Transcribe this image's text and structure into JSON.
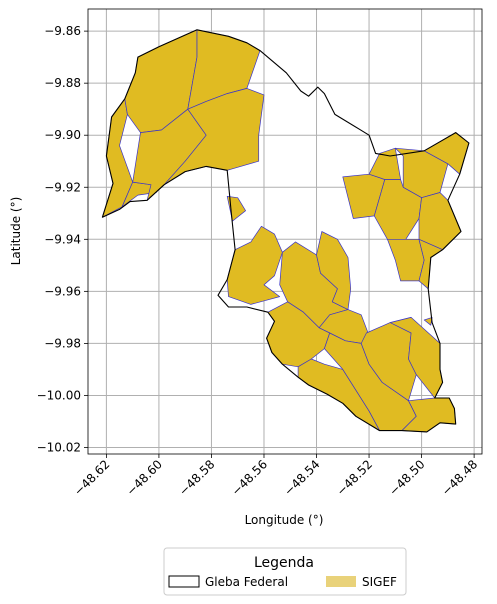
{
  "chart_data": {
    "type": "map",
    "xlabel": "Longitude (°)",
    "ylabel": "Latitude (°)",
    "xlim": [
      -48.627,
      -48.477
    ],
    "ylim": [
      -10.0225,
      -9.8515
    ],
    "xticks": [
      -48.62,
      -48.6,
      -48.58,
      -48.56,
      -48.54,
      -48.52,
      -48.5,
      -48.48
    ],
    "xtick_labels": [
      "−48.62",
      "−48.60",
      "−48.58",
      "−48.56",
      "−48.54",
      "−48.52",
      "−48.50",
      "−48.48"
    ],
    "yticks": [
      -9.86,
      -9.88,
      -9.9,
      -9.92,
      -9.94,
      -9.96,
      -9.98,
      -10.0,
      -10.02
    ],
    "ytick_labels": [
      "−9.86",
      "−9.88",
      "−9.90",
      "−9.92",
      "−9.94",
      "−9.96",
      "−9.98",
      "−10.00",
      "−10.02"
    ],
    "grid": true,
    "legend": {
      "title": "Legenda",
      "position": "bottom-center",
      "entries": [
        {
          "label": "Gleba Federal",
          "style": "outline",
          "color": "#000000"
        },
        {
          "label": "SIGEF",
          "style": "fill",
          "color": "#e9d27a"
        }
      ]
    },
    "colors": {
      "sigef_fill": "#e0bb22",
      "sigef_edge": "#3b35c9",
      "gleba_edge": "#000000",
      "grid": "#b0b0b0"
    },
    "gleba_outline": [
      [
        -48.6215,
        -9.9315
      ],
      [
        -48.6175,
        -9.9185
      ],
      [
        -48.62,
        -9.908
      ],
      [
        -48.618,
        -9.893
      ],
      [
        -48.613,
        -9.886
      ],
      [
        -48.609,
        -9.876
      ],
      [
        -48.608,
        -9.87
      ],
      [
        -48.6,
        -9.866
      ],
      [
        -48.5855,
        -9.8595
      ],
      [
        -48.5735,
        -9.862
      ],
      [
        -48.5665,
        -9.8645
      ],
      [
        -48.5615,
        -9.8675
      ],
      [
        -48.5515,
        -9.876
      ],
      [
        -48.546,
        -9.883
      ],
      [
        -48.543,
        -9.885
      ],
      [
        -48.5395,
        -9.8815
      ],
      [
        -48.537,
        -9.884
      ],
      [
        -48.533,
        -9.892
      ],
      [
        -48.524,
        -9.8975
      ],
      [
        -48.52,
        -9.9
      ],
      [
        -48.5175,
        -9.907
      ],
      [
        -48.512,
        -9.908
      ],
      [
        -48.499,
        -9.906
      ],
      [
        -48.493,
        -9.9025
      ],
      [
        -48.487,
        -9.899
      ],
      [
        -48.482,
        -9.903
      ],
      [
        -48.4855,
        -9.915
      ],
      [
        -48.49,
        -9.925
      ],
      [
        -48.485,
        -9.937
      ],
      [
        -48.492,
        -9.944
      ],
      [
        -48.4965,
        -9.947
      ],
      [
        -48.4975,
        -9.959
      ],
      [
        -48.496,
        -9.972
      ],
      [
        -48.493,
        -9.98
      ],
      [
        -48.493,
        -9.99
      ],
      [
        -48.492,
        -9.995
      ],
      [
        -48.495,
        -10.001
      ],
      [
        -48.4895,
        -10.001
      ],
      [
        -48.4875,
        -10.005
      ],
      [
        -48.487,
        -10.011
      ],
      [
        -48.493,
        -10.0105
      ],
      [
        -48.498,
        -10.014
      ],
      [
        -48.5075,
        -10.0135
      ],
      [
        -48.516,
        -10.0135
      ],
      [
        -48.525,
        -10.008
      ],
      [
        -48.53,
        -10.003
      ],
      [
        -48.536,
        -9.9995
      ],
      [
        -48.543,
        -9.996
      ],
      [
        -48.547,
        -9.993
      ],
      [
        -48.553,
        -9.988
      ],
      [
        -48.557,
        -9.9835
      ],
      [
        -48.559,
        -9.978
      ],
      [
        -48.556,
        -9.9715
      ],
      [
        -48.5585,
        -9.968
      ],
      [
        -48.5665,
        -9.966
      ],
      [
        -48.5735,
        -9.966
      ],
      [
        -48.5775,
        -9.9615
      ],
      [
        -48.574,
        -9.9555
      ],
      [
        -48.571,
        -9.944
      ],
      [
        -48.5725,
        -9.9295
      ],
      [
        -48.574,
        -9.9135
      ],
      [
        -48.582,
        -9.912
      ],
      [
        -48.59,
        -9.914
      ],
      [
        -48.598,
        -9.919
      ],
      [
        -48.6045,
        -9.925
      ],
      [
        -48.611,
        -9.9255
      ],
      [
        -48.615,
        -9.9285
      ],
      [
        -48.6215,
        -9.9315
      ]
    ],
    "sigef_parcels": [
      [
        [
          -48.6215,
          -9.9315
        ],
        [
          -48.6175,
          -9.9185
        ],
        [
          -48.62,
          -9.908
        ],
        [
          -48.618,
          -9.893
        ],
        [
          -48.613,
          -9.886
        ],
        [
          -48.612,
          -9.892
        ],
        [
          -48.615,
          -9.904
        ],
        [
          -48.61,
          -9.918
        ],
        [
          -48.614,
          -9.9275
        ],
        [
          -48.6215,
          -9.9315
        ]
      ],
      [
        [
          -48.614,
          -9.9275
        ],
        [
          -48.61,
          -9.918
        ],
        [
          -48.603,
          -9.919
        ],
        [
          -48.601,
          -9.922
        ],
        [
          -48.608,
          -9.923
        ],
        [
          -48.614,
          -9.9275
        ]
      ],
      [
        [
          -48.609,
          -9.876
        ],
        [
          -48.608,
          -9.87
        ],
        [
          -48.6,
          -9.866
        ],
        [
          -48.5855,
          -9.8595
        ],
        [
          -48.5855,
          -9.87
        ],
        [
          -48.589,
          -9.89
        ],
        [
          -48.599,
          -9.898
        ],
        [
          -48.607,
          -9.899
        ],
        [
          -48.612,
          -9.892
        ],
        [
          -48.613,
          -9.886
        ],
        [
          -48.609,
          -9.876
        ]
      ],
      [
        [
          -48.607,
          -9.899
        ],
        [
          -48.599,
          -9.898
        ],
        [
          -48.589,
          -9.89
        ],
        [
          -48.582,
          -9.9
        ],
        [
          -48.59,
          -9.91
        ],
        [
          -48.598,
          -9.919
        ],
        [
          -48.6045,
          -9.925
        ],
        [
          -48.603,
          -9.919
        ],
        [
          -48.61,
          -9.918
        ],
        [
          -48.607,
          -9.899
        ]
      ],
      [
        [
          -48.5855,
          -9.8595
        ],
        [
          -48.5735,
          -9.862
        ],
        [
          -48.5665,
          -9.8645
        ],
        [
          -48.5615,
          -9.8675
        ],
        [
          -48.5665,
          -9.882
        ],
        [
          -48.574,
          -9.884
        ],
        [
          -48.582,
          -9.887
        ],
        [
          -48.589,
          -9.89
        ],
        [
          -48.5855,
          -9.87
        ],
        [
          -48.5855,
          -9.8595
        ]
      ],
      [
        [
          -48.589,
          -9.89
        ],
        [
          -48.582,
          -9.887
        ],
        [
          -48.574,
          -9.884
        ],
        [
          -48.5665,
          -9.882
        ],
        [
          -48.56,
          -9.8845
        ],
        [
          -48.562,
          -9.9
        ],
        [
          -48.562,
          -9.91
        ],
        [
          -48.574,
          -9.9135
        ],
        [
          -48.582,
          -9.912
        ],
        [
          -48.59,
          -9.914
        ],
        [
          -48.598,
          -9.919
        ],
        [
          -48.59,
          -9.91
        ],
        [
          -48.582,
          -9.9
        ],
        [
          -48.589,
          -9.89
        ]
      ],
      [
        [
          -48.574,
          -9.9235
        ],
        [
          -48.57,
          -9.924
        ],
        [
          -48.567,
          -9.929
        ],
        [
          -48.572,
          -9.933
        ],
        [
          -48.574,
          -9.9235
        ]
      ],
      [
        [
          -48.561,
          -9.935
        ],
        [
          -48.556,
          -9.938
        ],
        [
          -48.553,
          -9.945
        ],
        [
          -48.556,
          -9.954
        ],
        [
          -48.56,
          -9.9575
        ],
        [
          -48.554,
          -9.962
        ],
        [
          -48.565,
          -9.965
        ],
        [
          -48.5735,
          -9.962
        ],
        [
          -48.574,
          -9.9555
        ],
        [
          -48.571,
          -9.944
        ],
        [
          -48.565,
          -9.941
        ],
        [
          -48.561,
          -9.935
        ]
      ],
      [
        [
          -48.548,
          -9.941
        ],
        [
          -48.54,
          -9.946
        ],
        [
          -48.5385,
          -9.953
        ],
        [
          -48.532,
          -9.959
        ],
        [
          -48.534,
          -9.964
        ],
        [
          -48.528,
          -9.967
        ],
        [
          -48.535,
          -9.969
        ],
        [
          -48.539,
          -9.974
        ],
        [
          -48.545,
          -9.968
        ],
        [
          -48.551,
          -9.964
        ],
        [
          -48.554,
          -9.9575
        ],
        [
          -48.553,
          -9.945
        ],
        [
          -48.548,
          -9.941
        ]
      ],
      [
        [
          -48.538,
          -9.937
        ],
        [
          -48.532,
          -9.94
        ],
        [
          -48.528,
          -9.947
        ],
        [
          -48.527,
          -9.959
        ],
        [
          -48.528,
          -9.967
        ],
        [
          -48.534,
          -9.964
        ],
        [
          -48.532,
          -9.959
        ],
        [
          -48.5385,
          -9.953
        ],
        [
          -48.54,
          -9.946
        ],
        [
          -48.538,
          -9.937
        ]
      ],
      [
        [
          -48.528,
          -9.967
        ],
        [
          -48.523,
          -9.969
        ],
        [
          -48.52,
          -9.977
        ],
        [
          -48.523,
          -9.98
        ],
        [
          -48.529,
          -9.979
        ],
        [
          -48.535,
          -9.976
        ],
        [
          -48.539,
          -9.974
        ],
        [
          -48.535,
          -9.969
        ],
        [
          -48.528,
          -9.967
        ]
      ],
      [
        [
          -48.559,
          -9.978
        ],
        [
          -48.556,
          -9.9715
        ],
        [
          -48.5585,
          -9.968
        ],
        [
          -48.551,
          -9.964
        ],
        [
          -48.545,
          -9.968
        ],
        [
          -48.539,
          -9.974
        ],
        [
          -48.535,
          -9.976
        ],
        [
          -48.537,
          -9.982
        ],
        [
          -48.542,
          -9.986
        ],
        [
          -48.547,
          -9.989
        ],
        [
          -48.553,
          -9.988
        ],
        [
          -48.557,
          -9.9835
        ],
        [
          -48.559,
          -9.978
        ]
      ],
      [
        [
          -48.547,
          -9.993
        ],
        [
          -48.543,
          -9.996
        ],
        [
          -48.536,
          -9.9995
        ],
        [
          -48.53,
          -10.003
        ],
        [
          -48.525,
          -10.008
        ],
        [
          -48.516,
          -10.0135
        ],
        [
          -48.52,
          -10.006
        ],
        [
          -48.525,
          -9.998
        ],
        [
          -48.53,
          -9.99
        ],
        [
          -48.537,
          -9.988
        ],
        [
          -48.542,
          -9.986
        ],
        [
          -48.547,
          -9.989
        ],
        [
          -48.547,
          -9.993
        ]
      ],
      [
        [
          -48.537,
          -9.982
        ],
        [
          -48.53,
          -9.99
        ],
        [
          -48.525,
          -9.998
        ],
        [
          -48.52,
          -10.006
        ],
        [
          -48.516,
          -10.0135
        ],
        [
          -48.5075,
          -10.0135
        ],
        [
          -48.502,
          -10.008
        ],
        [
          -48.505,
          -10.002
        ],
        [
          -48.515,
          -9.995
        ],
        [
          -48.52,
          -9.988
        ],
        [
          -48.523,
          -9.98
        ],
        [
          -48.529,
          -9.979
        ],
        [
          -48.535,
          -9.976
        ],
        [
          -48.537,
          -9.982
        ]
      ],
      [
        [
          -48.521,
          -9.976
        ],
        [
          -48.512,
          -9.972
        ],
        [
          -48.504,
          -9.97
        ],
        [
          -48.504,
          -9.976
        ],
        [
          -48.505,
          -9.986
        ],
        [
          -48.502,
          -9.992
        ],
        [
          -48.505,
          -10.002
        ],
        [
          -48.515,
          -9.995
        ],
        [
          -48.52,
          -9.988
        ],
        [
          -48.523,
          -9.98
        ],
        [
          -48.521,
          -9.976
        ]
      ],
      [
        [
          -48.512,
          -9.972
        ],
        [
          -48.504,
          -9.97
        ],
        [
          -48.493,
          -9.98
        ],
        [
          -48.493,
          -9.99
        ],
        [
          -48.492,
          -9.995
        ],
        [
          -48.495,
          -10.001
        ],
        [
          -48.502,
          -9.992
        ],
        [
          -48.505,
          -9.986
        ],
        [
          -48.504,
          -9.976
        ],
        [
          -48.512,
          -9.972
        ]
      ],
      [
        [
          -48.495,
          -10.001
        ],
        [
          -48.4895,
          -10.001
        ],
        [
          -48.4875,
          -10.005
        ],
        [
          -48.487,
          -10.011
        ],
        [
          -48.493,
          -10.0105
        ],
        [
          -48.498,
          -10.014
        ],
        [
          -48.5075,
          -10.0135
        ],
        [
          -48.502,
          -10.008
        ],
        [
          -48.505,
          -10.002
        ],
        [
          -48.495,
          -10.001
        ]
      ],
      [
        [
          -48.53,
          -9.916
        ],
        [
          -48.52,
          -9.915
        ],
        [
          -48.514,
          -9.917
        ],
        [
          -48.518,
          -9.931
        ],
        [
          -48.526,
          -9.932
        ],
        [
          -48.53,
          -9.916
        ]
      ],
      [
        [
          -48.514,
          -9.917
        ],
        [
          -48.52,
          -9.915
        ],
        [
          -48.516,
          -9.907
        ],
        [
          -48.51,
          -9.905
        ],
        [
          -48.508,
          -9.917
        ],
        [
          -48.514,
          -9.917
        ]
      ],
      [
        [
          -48.51,
          -9.905
        ],
        [
          -48.507,
          -9.908
        ],
        [
          -48.507,
          -9.92
        ],
        [
          -48.5,
          -9.924
        ],
        [
          -48.493,
          -9.922
        ],
        [
          -48.49,
          -9.911
        ],
        [
          -48.499,
          -9.906
        ],
        [
          -48.51,
          -9.905
        ]
      ],
      [
        [
          -48.499,
          -9.906
        ],
        [
          -48.493,
          -9.9025
        ],
        [
          -48.487,
          -9.899
        ],
        [
          -48.482,
          -9.903
        ],
        [
          -48.4855,
          -9.915
        ],
        [
          -48.49,
          -9.911
        ],
        [
          -48.499,
          -9.906
        ]
      ],
      [
        [
          -48.518,
          -9.931
        ],
        [
          -48.514,
          -9.917
        ],
        [
          -48.508,
          -9.917
        ],
        [
          -48.507,
          -9.92
        ],
        [
          -48.5,
          -9.924
        ],
        [
          -48.501,
          -9.932
        ],
        [
          -48.506,
          -9.94
        ],
        [
          -48.513,
          -9.94
        ],
        [
          -48.518,
          -9.931
        ]
      ],
      [
        [
          -48.5,
          -9.924
        ],
        [
          -48.493,
          -9.922
        ],
        [
          -48.49,
          -9.925
        ],
        [
          -48.485,
          -9.937
        ],
        [
          -48.492,
          -9.944
        ],
        [
          -48.501,
          -9.94
        ],
        [
          -48.501,
          -9.932
        ],
        [
          -48.5,
          -9.924
        ]
      ],
      [
        [
          -48.513,
          -9.94
        ],
        [
          -48.506,
          -9.94
        ],
        [
          -48.501,
          -9.94
        ],
        [
          -48.499,
          -9.948
        ],
        [
          -48.501,
          -9.956
        ],
        [
          -48.508,
          -9.956
        ],
        [
          -48.51,
          -9.948
        ],
        [
          -48.513,
          -9.94
        ]
      ],
      [
        [
          -48.501,
          -9.94
        ],
        [
          -48.492,
          -9.944
        ],
        [
          -48.4965,
          -9.947
        ],
        [
          -48.4975,
          -9.959
        ],
        [
          -48.501,
          -9.956
        ],
        [
          -48.499,
          -9.948
        ],
        [
          -48.501,
          -9.94
        ]
      ],
      [
        [
          -48.499,
          -9.971
        ],
        [
          -48.496,
          -9.97
        ],
        [
          -48.4965,
          -9.973
        ],
        [
          -48.499,
          -9.971
        ]
      ]
    ]
  }
}
